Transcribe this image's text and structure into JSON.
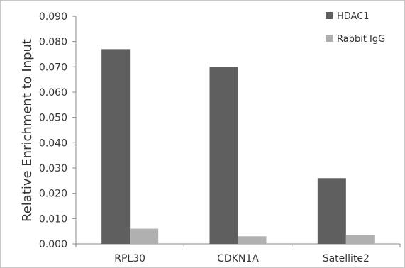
{
  "chart_data": {
    "type": "bar",
    "categories": [
      "RPL30",
      "CDKN1A",
      "Satellite2"
    ],
    "series": [
      {
        "name": "HDAC1",
        "values": [
          0.077,
          0.07,
          0.026
        ],
        "color": "#5f5f5f"
      },
      {
        "name": "Rabbit IgG",
        "values": [
          0.006,
          0.003,
          0.0035
        ],
        "color": "#b0b0b0"
      }
    ],
    "title": "",
    "xlabel": "",
    "ylabel": "Relative Enrichment to Input",
    "ylim": [
      0,
      0.09
    ],
    "yticks": [
      "0.000",
      "0.010",
      "0.020",
      "0.030",
      "0.040",
      "0.050",
      "0.060",
      "0.070",
      "0.080",
      "0.090"
    ],
    "grid": false,
    "legend_position": "top-right"
  }
}
